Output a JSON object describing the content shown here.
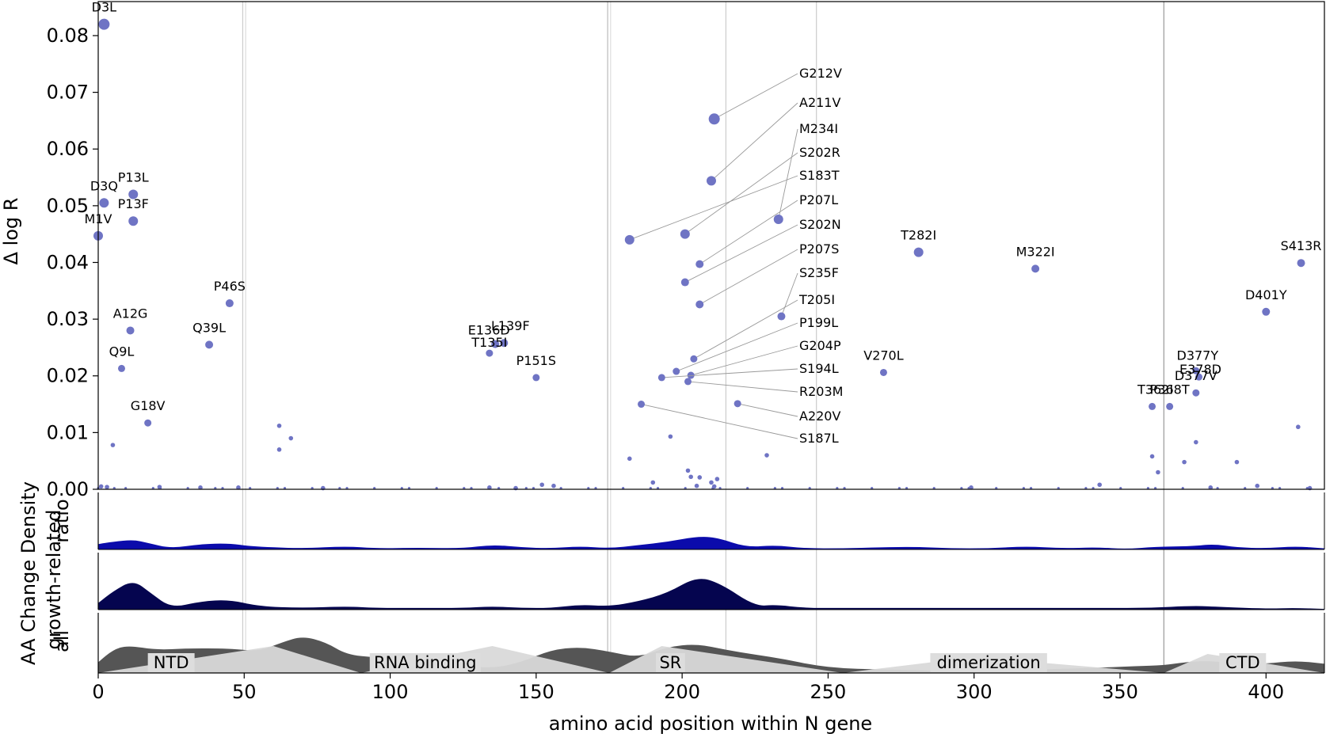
{
  "chart_data": {
    "type": "scatter",
    "xlabel": "amino acid position within N gene",
    "ylabel": "Δ log R",
    "xlim": [
      0,
      420
    ],
    "ylim": [
      0,
      0.086
    ],
    "x_ticks": [
      "0",
      "50",
      "100",
      "150",
      "200",
      "250",
      "300",
      "350",
      "400"
    ],
    "y_ticks": [
      "0.00",
      "0.01",
      "0.02",
      "0.03",
      "0.04",
      "0.05",
      "0.06",
      "0.07",
      "0.08"
    ],
    "point_color": "#6f74c4",
    "points": [
      {
        "label": "D3L",
        "x": 2,
        "y": 0.082
      },
      {
        "label": "D3Q",
        "x": 2,
        "y": 0.0505
      },
      {
        "label": "P13L",
        "x": 12,
        "y": 0.052
      },
      {
        "label": "P13F",
        "x": 12,
        "y": 0.0473
      },
      {
        "label": "M1V",
        "x": 0,
        "y": 0.0447
      },
      {
        "label": "P46S",
        "x": 45,
        "y": 0.0328
      },
      {
        "label": "A12G",
        "x": 11,
        "y": 0.028
      },
      {
        "label": "Q39L",
        "x": 38,
        "y": 0.0255
      },
      {
        "label": "Q9L",
        "x": 8,
        "y": 0.0213
      },
      {
        "label": "G18V",
        "x": 17,
        "y": 0.0117
      },
      {
        "label": "E136D",
        "x": 136,
        "y": 0.0256
      },
      {
        "label": "L139F",
        "x": 139,
        "y": 0.0258
      },
      {
        "label": "T135I",
        "x": 134,
        "y": 0.024
      },
      {
        "label": "P151S",
        "x": 150,
        "y": 0.0197
      },
      {
        "label": "G212V",
        "x": 211,
        "y": 0.0653
      },
      {
        "label": "A211V",
        "x": 210,
        "y": 0.0544
      },
      {
        "label": "M234I",
        "x": 233,
        "y": 0.0476
      },
      {
        "label": "S202R",
        "x": 201,
        "y": 0.045
      },
      {
        "label": "S183T",
        "x": 182,
        "y": 0.044
      },
      {
        "label": "P207L",
        "x": 206,
        "y": 0.0397
      },
      {
        "label": "S202N",
        "x": 201,
        "y": 0.0365
      },
      {
        "label": "P207S",
        "x": 206,
        "y": 0.0326
      },
      {
        "label": "S235F",
        "x": 234,
        "y": 0.0305
      },
      {
        "label": "T205I",
        "x": 204,
        "y": 0.023
      },
      {
        "label": "P199L",
        "x": 198,
        "y": 0.0208
      },
      {
        "label": "G204P",
        "x": 203,
        "y": 0.0201
      },
      {
        "label": "S194L",
        "x": 193,
        "y": 0.0197
      },
      {
        "label": "R203M",
        "x": 202,
        "y": 0.019
      },
      {
        "label": "A220V",
        "x": 219,
        "y": 0.0151
      },
      {
        "label": "S187L",
        "x": 186,
        "y": 0.015
      },
      {
        "label": "T282I",
        "x": 281,
        "y": 0.0418
      },
      {
        "label": "M322I",
        "x": 321,
        "y": 0.0389
      },
      {
        "label": "V270L",
        "x": 269,
        "y": 0.0206
      },
      {
        "label": "S413R",
        "x": 412,
        "y": 0.0399
      },
      {
        "label": "D401Y",
        "x": 400,
        "y": 0.0313
      },
      {
        "label": "D377Y",
        "x": 376,
        "y": 0.0209
      },
      {
        "label": "E378D",
        "x": 377,
        "y": 0.0198
      },
      {
        "label": "D377V",
        "x": 376,
        "y": 0.017
      },
      {
        "label": "T362I",
        "x": 361,
        "y": 0.0146
      },
      {
        "label": "P368T",
        "x": 367,
        "y": 0.0146
      }
    ],
    "small_points": [
      {
        "x": 62,
        "y": 0.0112
      },
      {
        "x": 66,
        "y": 0.009
      },
      {
        "x": 62,
        "y": 0.007
      },
      {
        "x": 5,
        "y": 0.0078
      },
      {
        "x": 196,
        "y": 0.0093
      },
      {
        "x": 182,
        "y": 0.0054
      },
      {
        "x": 229,
        "y": 0.006
      },
      {
        "x": 361,
        "y": 0.0058
      },
      {
        "x": 376,
        "y": 0.0083
      },
      {
        "x": 390,
        "y": 0.0048
      },
      {
        "x": 411,
        "y": 0.011
      },
      {
        "x": 372,
        "y": 0.0048
      },
      {
        "x": 363,
        "y": 0.003
      },
      {
        "x": 202,
        "y": 0.0033
      },
      {
        "x": 203,
        "y": 0.0022
      },
      {
        "x": 206,
        "y": 0.0021
      },
      {
        "x": 212,
        "y": 0.0018
      },
      {
        "x": 210,
        "y": 0.0012
      },
      {
        "x": 211,
        "y": 0.0005
      },
      {
        "x": 190,
        "y": 0.0012
      },
      {
        "x": 205,
        "y": 0.0006
      },
      {
        "x": 343,
        "y": 0.0008
      },
      {
        "x": 397,
        "y": 0.0006
      },
      {
        "x": 156,
        "y": 0.0006
      },
      {
        "x": 152,
        "y": 0.0008
      },
      {
        "x": 1,
        "y": 0.0005
      },
      {
        "x": 3,
        "y": 0.0004
      },
      {
        "x": 21,
        "y": 0.0004
      },
      {
        "x": 35,
        "y": 0.0003
      },
      {
        "x": 48,
        "y": 0.0003
      },
      {
        "x": 77,
        "y": 0.0002
      },
      {
        "x": 134,
        "y": 0.0003
      },
      {
        "x": 143,
        "y": 0.0002
      },
      {
        "x": 299,
        "y": 0.0003
      },
      {
        "x": 415,
        "y": 0.0002
      },
      {
        "x": 381,
        "y": 0.0003
      }
    ],
    "domains": [
      {
        "name": "NTD",
        "start": 17,
        "end": 33
      },
      {
        "name": "RNA binding",
        "start": 93,
        "end": 131
      },
      {
        "name": "SR",
        "start": 191,
        "end": 201
      },
      {
        "name": "dimerization",
        "start": 285,
        "end": 325
      },
      {
        "name": "CTD",
        "start": 384,
        "end": 400
      }
    ],
    "density_axis_label": "AA Change Density",
    "density_tracks": [
      {
        "name": "ratio",
        "color": "#0b0bab"
      },
      {
        "name": "growth-related",
        "color": "#05054f"
      },
      {
        "name": "all",
        "color": "#555555"
      }
    ],
    "density_curves": {
      "ratio": [
        [
          0,
          0.25
        ],
        [
          5,
          0.35
        ],
        [
          12,
          0.45
        ],
        [
          17,
          0.3
        ],
        [
          25,
          0.05
        ],
        [
          35,
          0.25
        ],
        [
          45,
          0.28
        ],
        [
          52,
          0.15
        ],
        [
          60,
          0.1
        ],
        [
          70,
          0.05
        ],
        [
          85,
          0.15
        ],
        [
          95,
          0.05
        ],
        [
          110,
          0.08
        ],
        [
          125,
          0.05
        ],
        [
          135,
          0.22
        ],
        [
          145,
          0.1
        ],
        [
          155,
          0.05
        ],
        [
          165,
          0.15
        ],
        [
          175,
          0.05
        ],
        [
          185,
          0.2
        ],
        [
          195,
          0.35
        ],
        [
          205,
          0.6
        ],
        [
          212,
          0.55
        ],
        [
          222,
          0.1
        ],
        [
          232,
          0.2
        ],
        [
          242,
          0.05
        ],
        [
          255,
          0.05
        ],
        [
          268,
          0.1
        ],
        [
          280,
          0.12
        ],
        [
          292,
          0.05
        ],
        [
          305,
          0.05
        ],
        [
          318,
          0.15
        ],
        [
          330,
          0.05
        ],
        [
          342,
          0.1
        ],
        [
          352,
          0.02
        ],
        [
          362,
          0.12
        ],
        [
          375,
          0.15
        ],
        [
          382,
          0.25
        ],
        [
          390,
          0.1
        ],
        [
          400,
          0.05
        ],
        [
          410,
          0.15
        ],
        [
          420,
          0.05
        ]
      ],
      "growth-related": [
        [
          0,
          0.2
        ],
        [
          5,
          0.55
        ],
        [
          12,
          0.9
        ],
        [
          18,
          0.5
        ],
        [
          25,
          0.05
        ],
        [
          35,
          0.25
        ],
        [
          45,
          0.3
        ],
        [
          55,
          0.1
        ],
        [
          70,
          0.05
        ],
        [
          85,
          0.1
        ],
        [
          95,
          0.05
        ],
        [
          110,
          0.05
        ],
        [
          125,
          0.05
        ],
        [
          135,
          0.1
        ],
        [
          145,
          0.05
        ],
        [
          155,
          0.05
        ],
        [
          165,
          0.15
        ],
        [
          175,
          0.1
        ],
        [
          185,
          0.25
        ],
        [
          195,
          0.5
        ],
        [
          205,
          1.0
        ],
        [
          213,
          0.8
        ],
        [
          225,
          0.1
        ],
        [
          232,
          0.15
        ],
        [
          242,
          0.05
        ],
        [
          255,
          0.05
        ],
        [
          270,
          0.05
        ],
        [
          285,
          0.05
        ],
        [
          300,
          0.05
        ],
        [
          318,
          0.05
        ],
        [
          330,
          0.05
        ],
        [
          345,
          0.05
        ],
        [
          360,
          0.05
        ],
        [
          375,
          0.12
        ],
        [
          385,
          0.08
        ],
        [
          400,
          0.03
        ],
        [
          410,
          0.05
        ],
        [
          420,
          0.02
        ]
      ],
      "all": [
        [
          0,
          0.35
        ],
        [
          5,
          0.75
        ],
        [
          10,
          0.9
        ],
        [
          20,
          0.75
        ],
        [
          30,
          0.8
        ],
        [
          45,
          0.8
        ],
        [
          55,
          0.7
        ],
        [
          63,
          1.0
        ],
        [
          70,
          1.2
        ],
        [
          78,
          1.0
        ],
        [
          85,
          0.6
        ],
        [
          95,
          0.5
        ],
        [
          105,
          0.45
        ],
        [
          115,
          0.35
        ],
        [
          125,
          0.25
        ],
        [
          135,
          0.15
        ],
        [
          145,
          0.35
        ],
        [
          155,
          0.75
        ],
        [
          165,
          0.85
        ],
        [
          175,
          0.7
        ],
        [
          185,
          0.5
        ],
        [
          195,
          0.85
        ],
        [
          205,
          0.95
        ],
        [
          215,
          0.75
        ],
        [
          225,
          0.6
        ],
        [
          235,
          0.45
        ],
        [
          245,
          0.25
        ],
        [
          255,
          0.15
        ],
        [
          265,
          0.12
        ],
        [
          275,
          0.1
        ],
        [
          285,
          0.08
        ],
        [
          295,
          0.07
        ],
        [
          305,
          0.07
        ],
        [
          315,
          0.1
        ],
        [
          325,
          0.12
        ],
        [
          335,
          0.15
        ],
        [
          345,
          0.18
        ],
        [
          355,
          0.22
        ],
        [
          365,
          0.25
        ],
        [
          372,
          0.35
        ],
        [
          380,
          0.4
        ],
        [
          390,
          0.3
        ],
        [
          400,
          0.3
        ],
        [
          410,
          0.4
        ],
        [
          420,
          0.3
        ]
      ]
    }
  }
}
